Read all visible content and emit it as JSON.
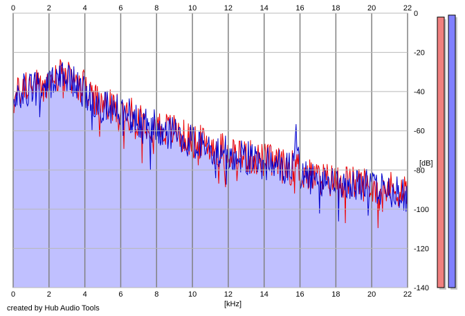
{
  "footer": {
    "credit": "created by Hub Audio Tools"
  },
  "colors": {
    "fill": "#c0c0ff",
    "channel_left": "#ee0000",
    "channel_right": "#0000cc",
    "grid": "#808080",
    "meter_left": "#f08080",
    "meter_right": "#8080ff"
  },
  "chart_data": {
    "type": "line",
    "title": "",
    "xlabel": "[kHz]",
    "ylabel": "[dB]",
    "xlim": [
      0,
      22
    ],
    "ylim": [
      -140,
      0
    ],
    "x_ticks": [
      "0",
      "2",
      "4",
      "6",
      "8",
      "10",
      "12",
      "14",
      "16",
      "18",
      "20",
      "22"
    ],
    "y_ticks": [
      "0",
      "-20",
      "-40",
      "-60",
      "-80",
      "-100",
      "-120",
      "-140"
    ],
    "grid": true,
    "x": [
      0,
      0.5,
      1,
      1.5,
      2,
      2.5,
      3,
      3.5,
      4,
      4.5,
      5,
      5.5,
      6,
      6.5,
      7,
      7.5,
      8,
      8.5,
      9,
      9.5,
      10,
      10.5,
      11,
      11.5,
      12,
      12.5,
      13,
      13.5,
      14,
      14.5,
      15,
      15.5,
      15.8,
      16,
      16.5,
      17,
      17.5,
      18,
      18.5,
      19,
      19.5,
      20,
      20.5,
      21,
      21.5,
      22
    ],
    "series": [
      {
        "values": [
          -45,
          -38,
          -36,
          -38,
          -36,
          -32,
          -33,
          -35,
          -38,
          -45,
          -47,
          -48,
          -50,
          -51,
          -54,
          -56,
          -57,
          -59,
          -60,
          -63,
          -65,
          -66,
          -68,
          -69,
          -70,
          -71,
          -73,
          -74,
          -75,
          -76,
          -78,
          -79,
          -77,
          -81,
          -83,
          -84,
          -85,
          -86,
          -86,
          -87,
          -87,
          -88,
          -88,
          -89,
          -90,
          -92
        ]
      },
      {
        "values": [
          -46,
          -40,
          -38,
          -39,
          -37,
          -33,
          -34,
          -36,
          -40,
          -46,
          -48,
          -49,
          -51,
          -52,
          -55,
          -57,
          -58,
          -60,
          -61,
          -64,
          -66,
          -67,
          -69,
          -70,
          -71,
          -72,
          -74,
          -75,
          -76,
          -77,
          -79,
          -80,
          -62,
          -82,
          -84,
          -85,
          -86,
          -87,
          -87,
          -88,
          -88,
          -89,
          -89,
          -90,
          -91,
          -93
        ]
      }
    ],
    "meters": {
      "left_level_db": -2,
      "right_level_db": -1
    }
  }
}
